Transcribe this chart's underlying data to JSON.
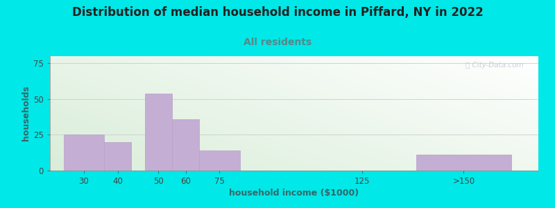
{
  "title": "Distribution of median household income in Piffard, NY in 2022",
  "subtitle": "All residents",
  "xlabel": "household income ($1000)",
  "ylabel": "households",
  "bar_left_edges": [
    15,
    30,
    45,
    55,
    65,
    145
  ],
  "bar_heights": [
    25,
    20,
    54,
    36,
    14,
    11
  ],
  "bar_widths": [
    15,
    10,
    10,
    10,
    15,
    35
  ],
  "xtick_positions": [
    22.5,
    35,
    50,
    60,
    72.5,
    125,
    162.5
  ],
  "xtick_labels": [
    "30",
    "40",
    "50",
    "60",
    "75",
    "125",
    ">150"
  ],
  "ytick_positions": [
    0,
    25,
    50,
    75
  ],
  "ytick_labels": [
    "0",
    "25",
    "50",
    "75"
  ],
  "ylim": [
    0,
    80
  ],
  "xlim": [
    10,
    190
  ],
  "bar_color": "#c4aed4",
  "bar_edgecolor": "#b8a0c8",
  "bg_outer": "#00e8e8",
  "plot_bg_left": "#daeeda",
  "plot_bg_right": "#f8faf2",
  "title_color": "#222222",
  "subtitle_color": "#558888",
  "axis_label_color": "#336666",
  "tick_color": "#444444",
  "watermark_text": "ⓘ City-Data.com",
  "watermark_color": "#c0c8d0",
  "grid_color": "#cccccc",
  "title_fontsize": 12,
  "subtitle_fontsize": 10,
  "axis_label_fontsize": 9,
  "tick_fontsize": 8.5
}
